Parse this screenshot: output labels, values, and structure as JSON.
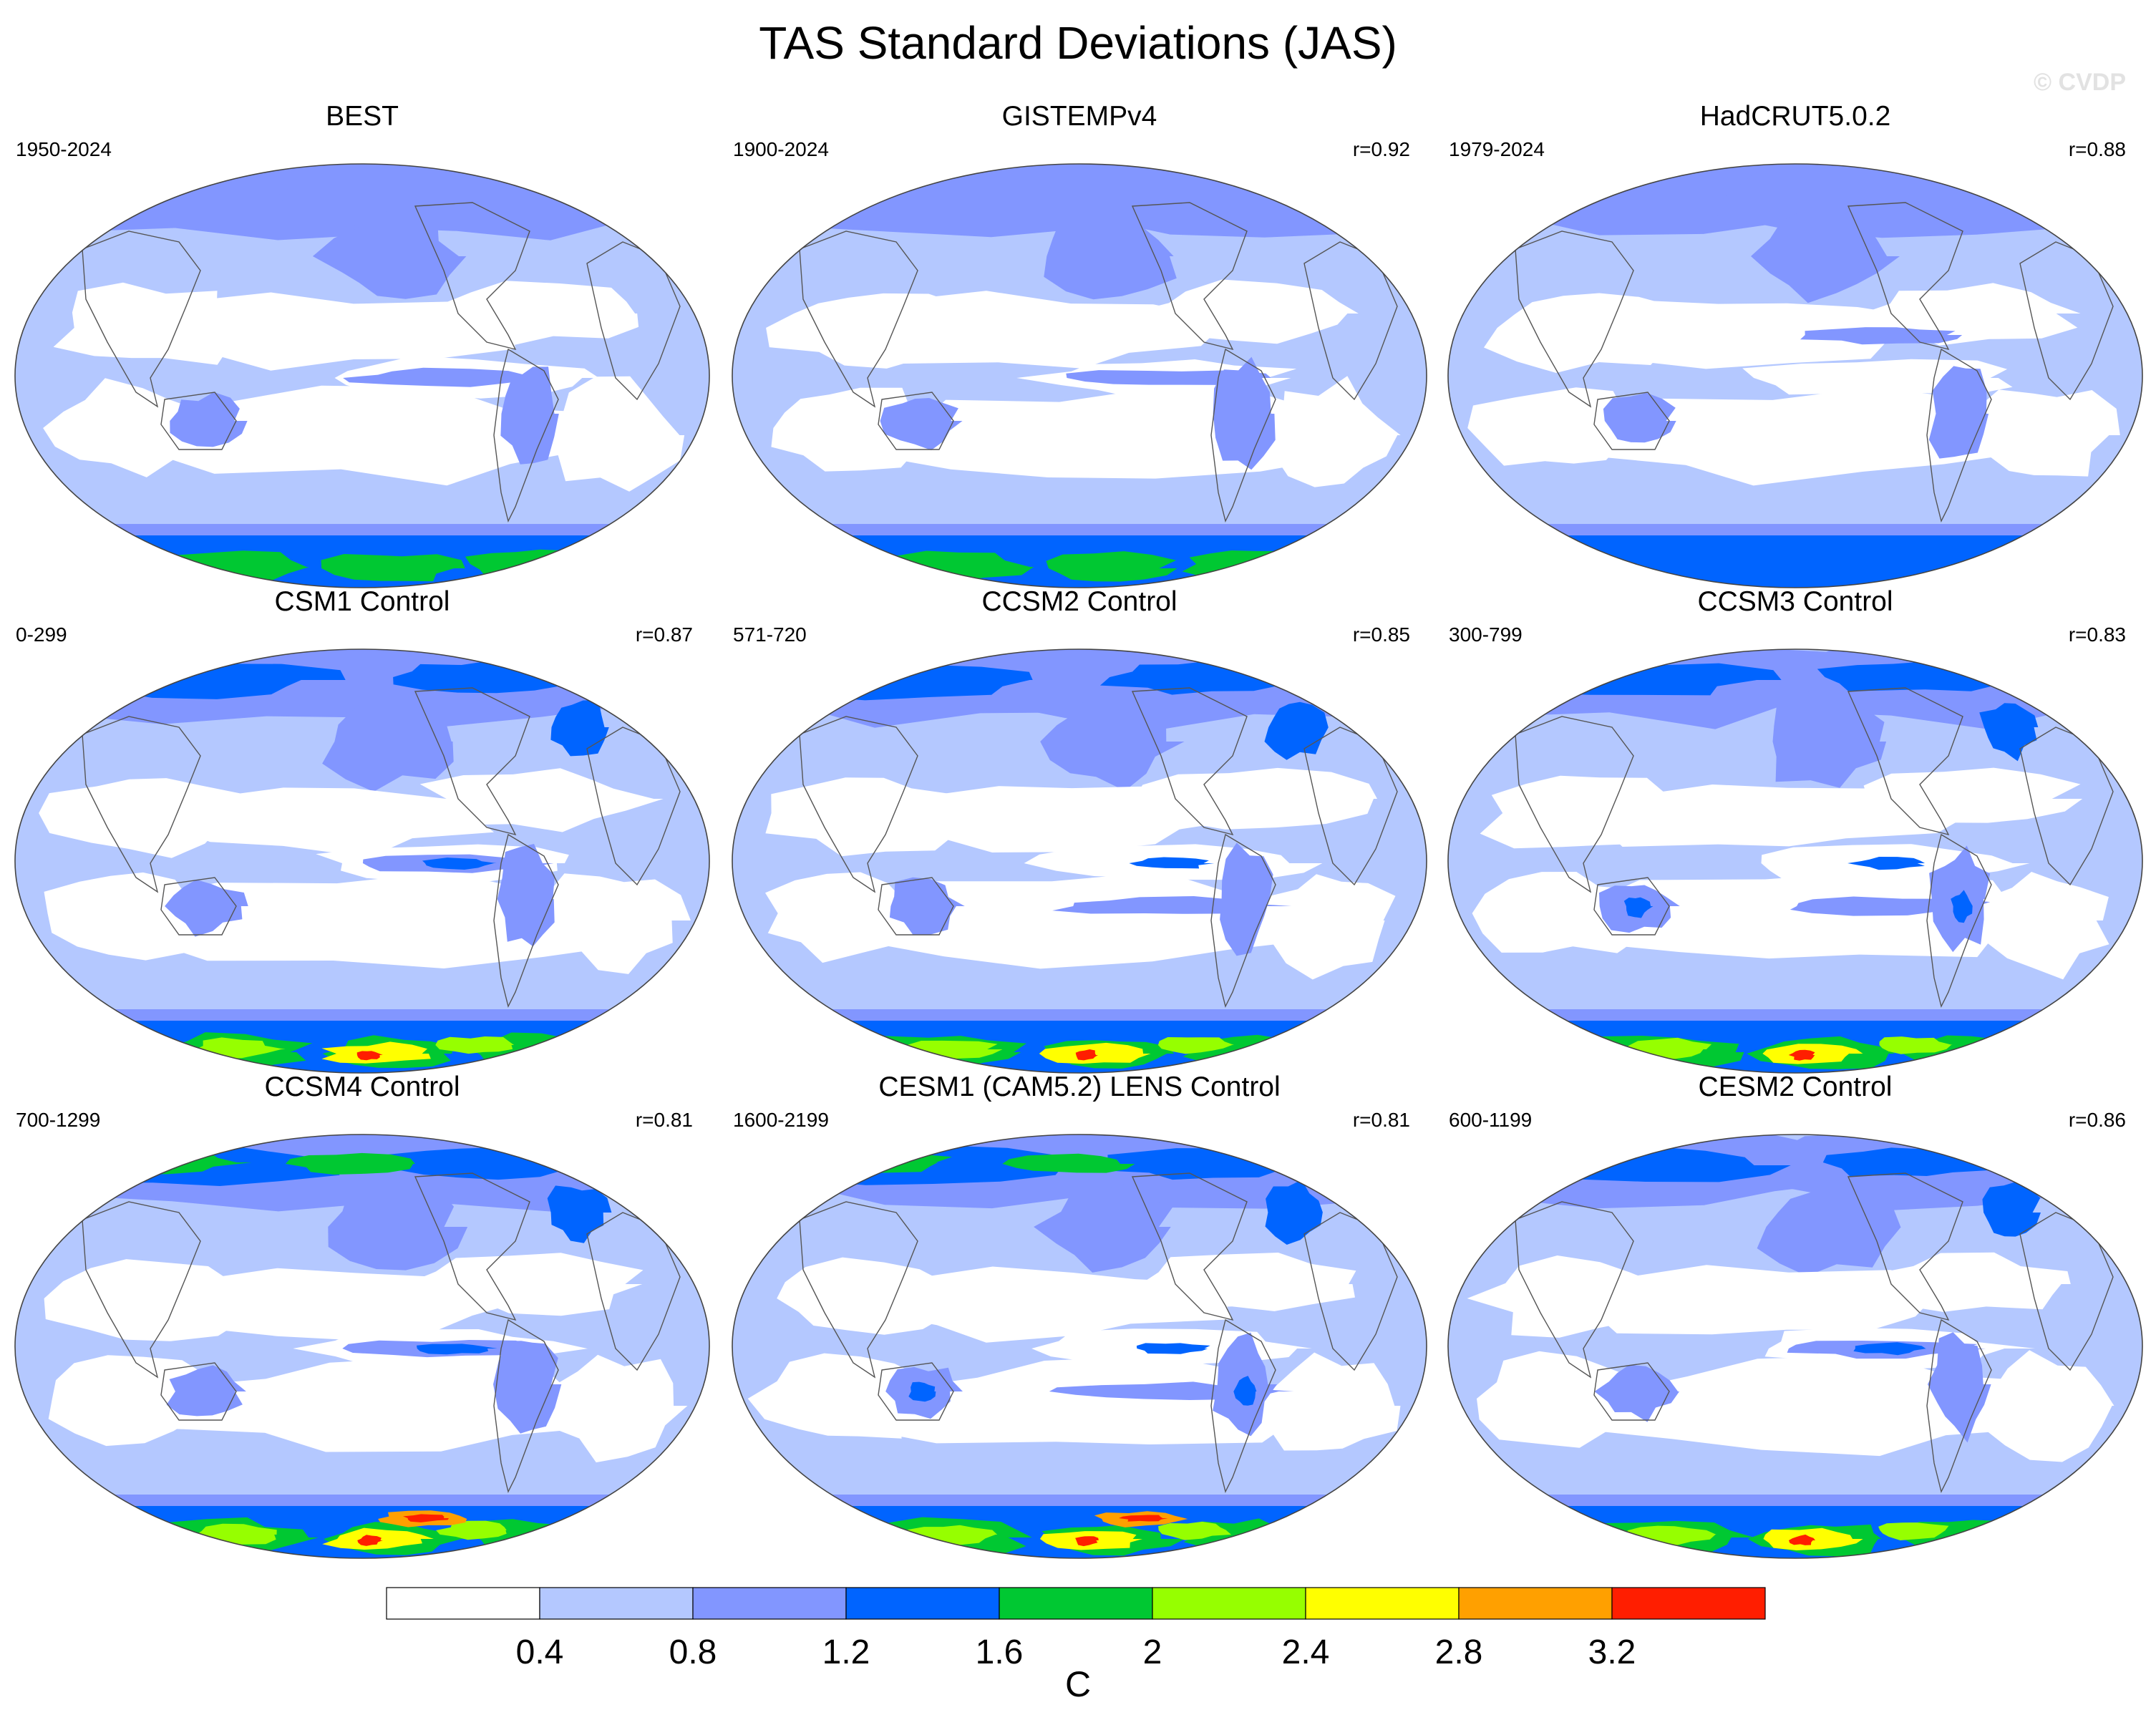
{
  "title": "TAS Standard Deviations (JAS)",
  "watermark": "© CVDP",
  "panels": [
    {
      "name": "BEST",
      "period": "1950-2024",
      "corr": ""
    },
    {
      "name": "GISTEMPv4",
      "period": "1900-2024",
      "corr": "r=0.92"
    },
    {
      "name": "HadCRUT5.0.2",
      "period": "1979-2024",
      "corr": "r=0.88"
    },
    {
      "name": "CSM1 Control",
      "period": "0-299",
      "corr": "r=0.87"
    },
    {
      "name": "CCSM2 Control",
      "period": "571-720",
      "corr": "r=0.85"
    },
    {
      "name": "CCSM3 Control",
      "period": "300-799",
      "corr": "r=0.83"
    },
    {
      "name": "CCSM4 Control",
      "period": "700-1299",
      "corr": "r=0.81"
    },
    {
      "name": "CESM1 (CAM5.2) LENS Control",
      "period": "1600-2199",
      "corr": "r=0.81"
    },
    {
      "name": "CESM2 Control",
      "period": "600-1199",
      "corr": "r=0.86"
    }
  ],
  "legend": {
    "colors": [
      "#ffffff",
      "#b4c8ff",
      "#8296ff",
      "#0064ff",
      "#00c832",
      "#96ff00",
      "#ffff00",
      "#ffa000",
      "#ff1e00"
    ],
    "labels": [
      "0.4",
      "0.8",
      "1.2",
      "1.6",
      "2",
      "2.4",
      "2.8",
      "3.2"
    ],
    "unit": "C"
  }
}
